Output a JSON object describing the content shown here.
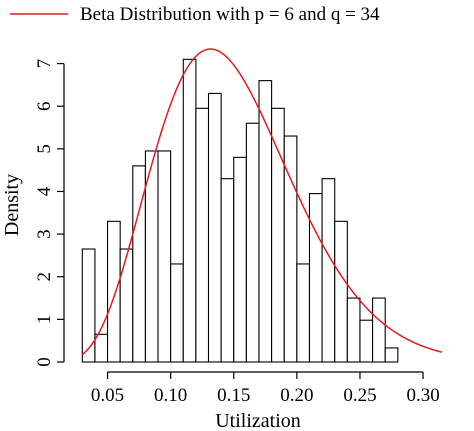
{
  "chart_data": {
    "type": "histogram",
    "xlabel": "Utilization",
    "ylabel": "Density",
    "xlim": [
      0.025,
      0.315
    ],
    "ylim": [
      0,
      7.6
    ],
    "x_ticks": [
      0.05,
      0.1,
      0.15,
      0.2,
      0.25,
      0.3
    ],
    "x_tick_labels": [
      "0.05",
      "0.10",
      "0.15",
      "0.20",
      "0.25",
      "0.30"
    ],
    "y_ticks": [
      0,
      1,
      2,
      3,
      4,
      5,
      6,
      7
    ],
    "y_tick_labels": [
      "0",
      "1",
      "2",
      "3",
      "4",
      "5",
      "6",
      "7"
    ],
    "grid": false,
    "legend_position": "top",
    "bins": {
      "start": 0.03,
      "width": 0.01,
      "densities": [
        2.65,
        0.65,
        3.3,
        2.65,
        4.6,
        4.95,
        4.95,
        2.3,
        7.1,
        5.95,
        6.3,
        4.3,
        4.8,
        5.6,
        6.6,
        5.95,
        5.3,
        2.3,
        3.95,
        4.3,
        3.3,
        1.5,
        0.98,
        1.5,
        0.33
      ],
      "fill": "#ffffff",
      "stroke": "#000000"
    },
    "series": [
      {
        "name": "Beta Distribution with p = 6 and q = 34",
        "kind": "beta_density",
        "p": 6,
        "q": 34,
        "x_range": [
          0.03,
          0.315
        ],
        "color": "#e41a1c"
      }
    ]
  }
}
